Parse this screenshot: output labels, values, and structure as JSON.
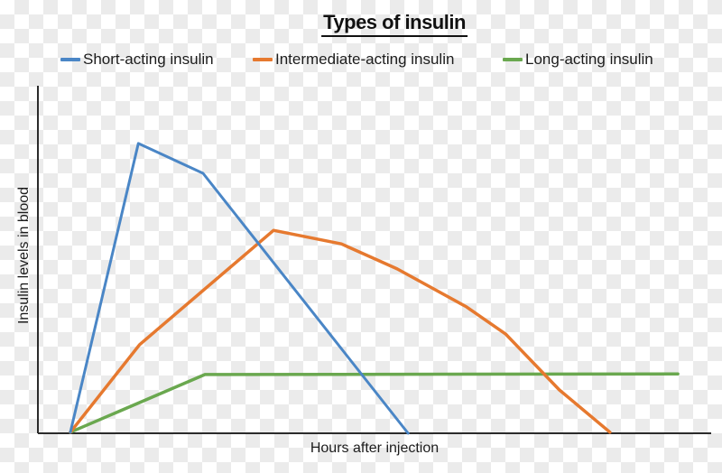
{
  "title": {
    "text": "Types of insulin"
  },
  "legend": {
    "items": [
      {
        "label": "Short-acting insulin",
        "color": "#4a86c6"
      },
      {
        "label": "Intermediate-acting insulin",
        "color": "#e6792f"
      },
      {
        "label": "Long-acting insulin",
        "color": "#6aa84f"
      }
    ]
  },
  "axes": {
    "x_label": "Hours after injection",
    "y_label": "Insulin levels in blood"
  },
  "colors": {
    "axis": "#2b2b2b",
    "text": "#1c1c1c",
    "checker_gray": "#ebebeb",
    "checker_white": "#ffffff"
  },
  "chart_data": {
    "type": "line",
    "title": "Types of insulin",
    "xlabel": "Hours after injection",
    "ylabel": "Insulin levels in blood",
    "x_ticks": [],
    "y_ticks": [],
    "grid": false,
    "legend_position": "top",
    "axis_note": "Axes carry no numeric tick labels (qualitative chart). Series points are relative fractions of the plot area: x=0 at the curve origin, x=1 at the right end of the x-axis; y=0 at the baseline, y=1 at the top of the y-axis.",
    "series": [
      {
        "name": "Short-acting insulin",
        "color": "#4a86c6",
        "points": [
          [
            0.0,
            0.003
          ],
          [
            0.106,
            0.834
          ],
          [
            0.207,
            0.748
          ],
          [
            0.527,
            0.0
          ]
        ]
      },
      {
        "name": "Intermediate-acting insulin",
        "color": "#e6792f",
        "points": [
          [
            0.0,
            0.003
          ],
          [
            0.108,
            0.255
          ],
          [
            0.317,
            0.584
          ],
          [
            0.423,
            0.545
          ],
          [
            0.51,
            0.473
          ],
          [
            0.618,
            0.364
          ],
          [
            0.679,
            0.286
          ],
          [
            0.763,
            0.125
          ],
          [
            0.842,
            0.003
          ]
        ]
      },
      {
        "name": "Long-acting insulin",
        "color": "#6aa84f",
        "points": [
          [
            0.0,
            0.003
          ],
          [
            0.21,
            0.169
          ],
          [
            0.948,
            0.171
          ]
        ]
      }
    ]
  }
}
